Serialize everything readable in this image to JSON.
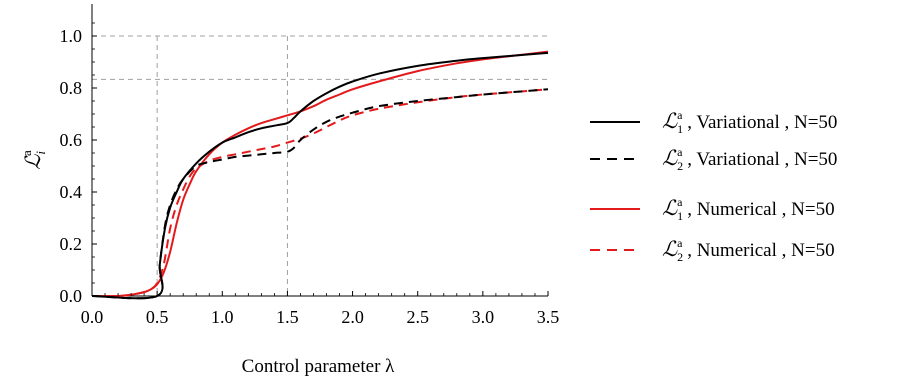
{
  "chart_data": {
    "type": "line",
    "xlabel": "Control parameter λ",
    "ylabel": {
      "base": "ℒ",
      "sub": "i",
      "sup": "a"
    },
    "xlim": [
      0.0,
      3.5
    ],
    "ylim": [
      0.0,
      1.1
    ],
    "x_ticks": [
      "0.0",
      "0.5",
      "1.0",
      "1.5",
      "2.0",
      "2.5",
      "3.0",
      "3.5"
    ],
    "y_ticks": [
      "0.0",
      "0.2",
      "0.4",
      "0.6",
      "0.8",
      "1.0"
    ],
    "grid": false,
    "legend_position": "right",
    "reference_lines": {
      "vertical_x": [
        0.5,
        1.5
      ],
      "horizontal_y": [
        1.0,
        0.833
      ]
    },
    "series": [
      {
        "name": "ℒ₁ᵃ , Variational , N=50",
        "legend": {
          "base": "ℒ",
          "sub": "1",
          "sup": "a",
          "suffix": " , Variational , N=50"
        },
        "color": "#000000",
        "dash": "solid",
        "x": [
          0.0,
          0.5,
          0.52,
          0.56,
          0.6,
          0.65,
          0.7,
          0.8,
          0.9,
          1.0,
          1.1,
          1.2,
          1.3,
          1.4,
          1.5,
          1.55,
          1.6,
          1.7,
          1.8,
          1.9,
          2.0,
          2.2,
          2.5,
          2.8,
          3.0,
          3.25,
          3.5
        ],
        "y": [
          0.0,
          0.0,
          0.12,
          0.26,
          0.34,
          0.4,
          0.45,
          0.51,
          0.555,
          0.59,
          0.61,
          0.63,
          0.645,
          0.655,
          0.665,
          0.685,
          0.71,
          0.75,
          0.78,
          0.805,
          0.825,
          0.855,
          0.885,
          0.905,
          0.915,
          0.925,
          0.935
        ]
      },
      {
        "name": "ℒ₂ᵃ , Variational , N=50",
        "legend": {
          "base": "ℒ",
          "sub": "2",
          "sup": "a",
          "suffix": " , Variational , N=50"
        },
        "color": "#000000",
        "dash": "dashed",
        "x": [
          0.0,
          0.5,
          0.52,
          0.56,
          0.6,
          0.65,
          0.7,
          0.8,
          0.9,
          1.0,
          1.1,
          1.2,
          1.3,
          1.4,
          1.5,
          1.55,
          1.6,
          1.7,
          1.8,
          1.9,
          2.0,
          2.2,
          2.5,
          2.8,
          3.0,
          3.25,
          3.5
        ],
        "y": [
          0.0,
          0.0,
          0.12,
          0.27,
          0.35,
          0.41,
          0.45,
          0.5,
          0.515,
          0.525,
          0.535,
          0.54,
          0.545,
          0.55,
          0.555,
          0.57,
          0.6,
          0.64,
          0.67,
          0.69,
          0.705,
          0.73,
          0.75,
          0.765,
          0.775,
          0.785,
          0.795
        ]
      },
      {
        "name": "ℒ₁ᵃ , Numerical , N=50",
        "legend": {
          "base": "ℒ",
          "sub": "1",
          "sup": "a",
          "suffix": " , Numerical , N=50"
        },
        "color": "#e31a1c",
        "dash": "solid",
        "x": [
          0.0,
          0.2,
          0.3,
          0.4,
          0.45,
          0.5,
          0.55,
          0.6,
          0.65,
          0.7,
          0.75,
          0.8,
          0.9,
          1.0,
          1.1,
          1.2,
          1.3,
          1.4,
          1.5,
          1.6,
          1.7,
          1.8,
          1.9,
          2.0,
          2.2,
          2.5,
          2.8,
          3.0,
          3.25,
          3.5
        ],
        "y": [
          0.0,
          0.0,
          0.005,
          0.015,
          0.025,
          0.045,
          0.09,
          0.17,
          0.28,
          0.37,
          0.43,
          0.48,
          0.545,
          0.59,
          0.62,
          0.645,
          0.665,
          0.68,
          0.695,
          0.71,
          0.73,
          0.755,
          0.775,
          0.795,
          0.825,
          0.865,
          0.895,
          0.91,
          0.925,
          0.94
        ]
      },
      {
        "name": "ℒ₂ᵃ , Numerical , N=50",
        "legend": {
          "base": "ℒ",
          "sub": "2",
          "sup": "a",
          "suffix": " , Numerical , N=50"
        },
        "color": "#e31a1c",
        "dash": "dashed",
        "x": [
          0.0,
          0.2,
          0.3,
          0.4,
          0.45,
          0.5,
          0.55,
          0.6,
          0.65,
          0.7,
          0.75,
          0.8,
          0.9,
          1.0,
          1.1,
          1.2,
          1.3,
          1.4,
          1.5,
          1.6,
          1.7,
          1.8,
          1.9,
          2.0,
          2.2,
          2.5,
          2.8,
          3.0,
          3.25,
          3.5
        ],
        "y": [
          0.0,
          0.0,
          0.005,
          0.015,
          0.025,
          0.05,
          0.12,
          0.26,
          0.35,
          0.41,
          0.46,
          0.49,
          0.52,
          0.535,
          0.545,
          0.555,
          0.565,
          0.575,
          0.59,
          0.605,
          0.625,
          0.65,
          0.675,
          0.695,
          0.72,
          0.745,
          0.765,
          0.775,
          0.785,
          0.795
        ]
      }
    ]
  }
}
